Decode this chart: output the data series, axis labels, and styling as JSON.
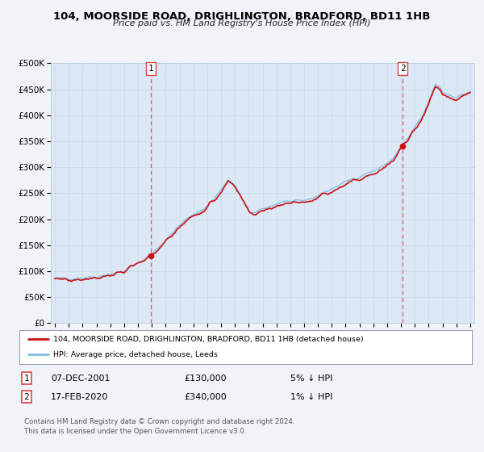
{
  "title": "104, MOORSIDE ROAD, DRIGHLINGTON, BRADFORD, BD11 1HB",
  "subtitle": "Price paid vs. HM Land Registry's House Price Index (HPI)",
  "legend_line1": "104, MOORSIDE ROAD, DRIGHLINGTON, BRADFORD, BD11 1HB (detached house)",
  "legend_line2": "HPI: Average price, detached house, Leeds",
  "annotation1_date": "07-DEC-2001",
  "annotation1_price": "£130,000",
  "annotation1_hpi": "5% ↓ HPI",
  "annotation2_date": "17-FEB-2020",
  "annotation2_price": "£340,000",
  "annotation2_hpi": "1% ↓ HPI",
  "footer": "Contains HM Land Registry data © Crown copyright and database right 2024.\nThis data is licensed under the Open Government Licence v3.0.",
  "sale1_year": 2001.92,
  "sale1_value": 130000,
  "sale2_year": 2020.12,
  "sale2_value": 340000,
  "hpi_color": "#7bbde8",
  "price_color": "#cc1111",
  "sale_dot_color": "#cc1111",
  "vline_color": "#dd4444",
  "background_color": "#f0f4f8",
  "plot_bg_color": "#dce8f5",
  "ylim_min": 0,
  "ylim_max": 500000,
  "xlabel_start": 1995,
  "xlabel_end": 2025
}
